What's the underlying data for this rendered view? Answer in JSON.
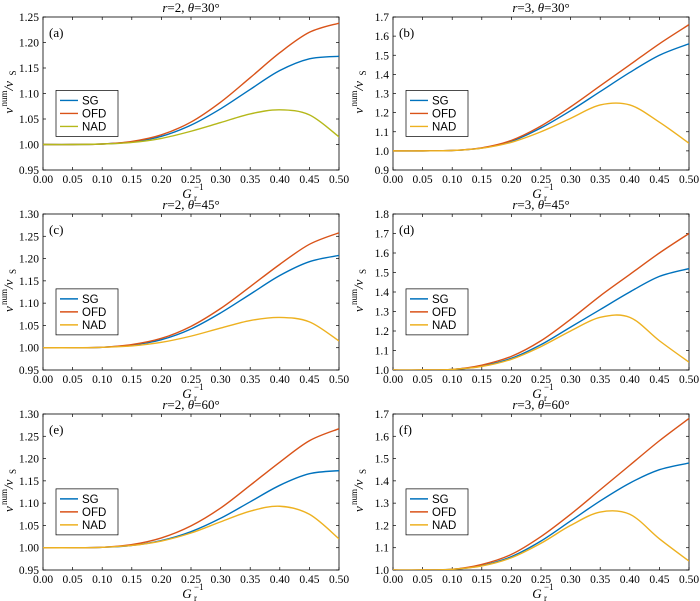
{
  "colors": {
    "SG": "#0072BD",
    "OFD": "#D95319",
    "NAD": "#EDB120",
    "NAD_a": "#B5B81A"
  },
  "chart_data": [
    {
      "type": "line",
      "label": "(a)",
      "title_r": "2",
      "title_theta": "30°",
      "xlim": [
        0,
        0.5
      ],
      "ylim": [
        0.95,
        1.25
      ],
      "xticks": [
        "0.00",
        "0.05",
        "0.10",
        "0.15",
        "0.20",
        "0.25",
        "0.30",
        "0.35",
        "0.40",
        "0.45",
        "0.50"
      ],
      "yticks": [
        "0.95",
        "1.00",
        "1.05",
        "1.10",
        "1.15",
        "1.20",
        "1.25"
      ],
      "xlabel": "G",
      "xlabel_sub": "r",
      "xlabel_sup": "−1",
      "ylabel": "v",
      "ylabel_sup": "num",
      "ylabel_tail": "/v",
      "ylabel_tail_sub": "S",
      "legend_pos": "left",
      "x": [
        0,
        0.05,
        0.1,
        0.15,
        0.2,
        0.25,
        0.3,
        0.35,
        0.4,
        0.45,
        0.5
      ],
      "series": [
        {
          "name": "SG",
          "values": [
            1.0,
            1.0,
            1.001,
            1.005,
            1.016,
            1.038,
            1.07,
            1.108,
            1.145,
            1.168,
            1.173
          ]
        },
        {
          "name": "OFD",
          "values": [
            1.0,
            1.0,
            1.001,
            1.006,
            1.019,
            1.044,
            1.083,
            1.131,
            1.18,
            1.22,
            1.238
          ]
        },
        {
          "name": "NAD",
          "values": [
            1.0,
            1.0,
            1.001,
            1.004,
            1.012,
            1.026,
            1.043,
            1.06,
            1.068,
            1.058,
            1.015
          ]
        }
      ]
    },
    {
      "type": "line",
      "label": "(b)",
      "title_r": "3",
      "title_theta": "30°",
      "xlim": [
        0,
        0.5
      ],
      "ylim": [
        0.9,
        1.7
      ],
      "xticks": [
        "0.00",
        "0.05",
        "0.10",
        "0.15",
        "0.20",
        "0.25",
        "0.30",
        "0.35",
        "0.40",
        "0.45",
        "0.50"
      ],
      "yticks": [
        "0.9",
        "1.0",
        "1.1",
        "1.2",
        "1.3",
        "1.4",
        "1.5",
        "1.6",
        "1.7"
      ],
      "xlabel": "G",
      "xlabel_sub": "r",
      "xlabel_sup": "−1",
      "ylabel": "v",
      "ylabel_sup": "num",
      "ylabel_tail": "/v",
      "ylabel_tail_sub": "S",
      "legend_pos": "left",
      "x": [
        0,
        0.05,
        0.1,
        0.15,
        0.2,
        0.25,
        0.3,
        0.35,
        0.4,
        0.45,
        0.5
      ],
      "series": [
        {
          "name": "SG",
          "values": [
            1.0,
            1.0,
            1.002,
            1.015,
            1.05,
            1.12,
            1.21,
            1.31,
            1.41,
            1.5,
            1.56
          ]
        },
        {
          "name": "OFD",
          "values": [
            1.0,
            1.0,
            1.002,
            1.016,
            1.055,
            1.13,
            1.23,
            1.34,
            1.45,
            1.56,
            1.66
          ]
        },
        {
          "name": "NAD",
          "values": [
            1.0,
            1.0,
            1.002,
            1.014,
            1.045,
            1.1,
            1.17,
            1.24,
            1.24,
            1.15,
            1.04
          ]
        }
      ]
    },
    {
      "type": "line",
      "label": "(c)",
      "title_r": "2",
      "title_theta": "45°",
      "xlim": [
        0,
        0.5
      ],
      "ylim": [
        0.95,
        1.3
      ],
      "xticks": [
        "0.00",
        "0.05",
        "0.10",
        "0.15",
        "0.20",
        "0.25",
        "0.30",
        "0.35",
        "0.40",
        "0.45",
        "0.50"
      ],
      "yticks": [
        "0.95",
        "1.00",
        "1.05",
        "1.10",
        "1.15",
        "1.20",
        "1.25",
        "1.30"
      ],
      "xlabel": "G",
      "xlabel_sub": "r",
      "xlabel_sup": "−1",
      "ylabel": "v",
      "ylabel_sup": "num",
      "ylabel_tail": "/v",
      "ylabel_tail_sub": "S",
      "legend_pos": "left",
      "x": [
        0,
        0.05,
        0.1,
        0.15,
        0.2,
        0.25,
        0.3,
        0.35,
        0.4,
        0.45,
        0.5
      ],
      "series": [
        {
          "name": "SG",
          "values": [
            1.0,
            1.0,
            1.001,
            1.006,
            1.018,
            1.042,
            1.078,
            1.12,
            1.162,
            1.193,
            1.207
          ]
        },
        {
          "name": "OFD",
          "values": [
            1.0,
            1.0,
            1.001,
            1.007,
            1.021,
            1.048,
            1.088,
            1.137,
            1.187,
            1.232,
            1.258
          ]
        },
        {
          "name": "NAD",
          "values": [
            1.0,
            1.0,
            1.001,
            1.004,
            1.012,
            1.026,
            1.044,
            1.061,
            1.068,
            1.058,
            1.015
          ]
        }
      ]
    },
    {
      "type": "line",
      "label": "(d)",
      "title_r": "3",
      "title_theta": "45°",
      "xlim": [
        0,
        0.5
      ],
      "ylim": [
        1.0,
        1.8
      ],
      "xticks": [
        "0.00",
        "0.05",
        "0.10",
        "0.15",
        "0.20",
        "0.25",
        "0.30",
        "0.35",
        "0.40",
        "0.45",
        "0.50"
      ],
      "yticks": [
        "1.0",
        "1.1",
        "1.2",
        "1.3",
        "1.4",
        "1.5",
        "1.6",
        "1.7",
        "1.8"
      ],
      "xlabel": "G",
      "xlabel_sub": "r",
      "xlabel_sup": "−1",
      "ylabel": "v",
      "ylabel_sup": "num",
      "ylabel_tail": "/v",
      "ylabel_tail_sub": "S",
      "legend_pos": "left",
      "x": [
        0,
        0.05,
        0.1,
        0.15,
        0.2,
        0.25,
        0.3,
        0.35,
        0.4,
        0.45,
        0.5
      ],
      "series": [
        {
          "name": "SG",
          "values": [
            1.0,
            1.0,
            1.003,
            1.02,
            1.06,
            1.13,
            1.22,
            1.31,
            1.4,
            1.48,
            1.52
          ]
        },
        {
          "name": "OFD",
          "values": [
            1.0,
            1.0,
            1.003,
            1.025,
            1.07,
            1.15,
            1.26,
            1.38,
            1.49,
            1.6,
            1.7
          ]
        },
        {
          "name": "NAD",
          "values": [
            1.0,
            1.0,
            1.003,
            1.018,
            1.055,
            1.12,
            1.2,
            1.27,
            1.27,
            1.15,
            1.04
          ]
        }
      ]
    },
    {
      "type": "line",
      "label": "(e)",
      "title_r": "2",
      "title_theta": "60°",
      "xlim": [
        0,
        0.5
      ],
      "ylim": [
        0.95,
        1.3
      ],
      "xticks": [
        "0.00",
        "0.05",
        "0.10",
        "0.15",
        "0.20",
        "0.25",
        "0.30",
        "0.35",
        "0.40",
        "0.45",
        "0.50"
      ],
      "yticks": [
        "0.95",
        "1.00",
        "1.05",
        "1.10",
        "1.15",
        "1.20",
        "1.25",
        "1.30"
      ],
      "xlabel": "G",
      "xlabel_sub": "r",
      "xlabel_sup": "−1",
      "ylabel": "v",
      "ylabel_sup": "num",
      "ylabel_tail": "/v",
      "ylabel_tail_sub": "S",
      "legend_pos": "left",
      "x": [
        0,
        0.05,
        0.1,
        0.15,
        0.2,
        0.25,
        0.3,
        0.35,
        0.4,
        0.45,
        0.5
      ],
      "series": [
        {
          "name": "SG",
          "values": [
            1.0,
            1.0,
            1.001,
            1.005,
            1.016,
            1.036,
            1.066,
            1.103,
            1.14,
            1.166,
            1.173
          ]
        },
        {
          "name": "OFD",
          "values": [
            1.0,
            1.0,
            1.001,
            1.007,
            1.022,
            1.049,
            1.089,
            1.14,
            1.192,
            1.24,
            1.267
          ]
        },
        {
          "name": "NAD",
          "values": [
            1.0,
            1.0,
            1.001,
            1.005,
            1.015,
            1.033,
            1.058,
            1.082,
            1.093,
            1.075,
            1.02
          ]
        }
      ]
    },
    {
      "type": "line",
      "label": "(f)",
      "title_r": "3",
      "title_theta": "60°",
      "xlim": [
        0,
        0.5
      ],
      "ylim": [
        1.0,
        1.7
      ],
      "xticks": [
        "0.00",
        "0.05",
        "0.10",
        "0.15",
        "0.20",
        "0.25",
        "0.30",
        "0.35",
        "0.40",
        "0.45",
        "0.50"
      ],
      "yticks": [
        "1.0",
        "1.1",
        "1.2",
        "1.3",
        "1.4",
        "1.5",
        "1.6",
        "1.7"
      ],
      "xlabel": "G",
      "xlabel_sub": "r",
      "xlabel_sup": "−1",
      "ylabel": "v",
      "ylabel_sup": "num",
      "ylabel_tail": "/v",
      "ylabel_tail_sub": "S",
      "legend_pos": "left",
      "x": [
        0,
        0.05,
        0.1,
        0.15,
        0.2,
        0.25,
        0.3,
        0.35,
        0.4,
        0.45,
        0.5
      ],
      "series": [
        {
          "name": "SG",
          "values": [
            1.0,
            1.0,
            1.003,
            1.02,
            1.06,
            1.13,
            1.22,
            1.31,
            1.39,
            1.45,
            1.48
          ]
        },
        {
          "name": "OFD",
          "values": [
            1.0,
            1.0,
            1.003,
            1.025,
            1.07,
            1.15,
            1.25,
            1.36,
            1.47,
            1.58,
            1.68
          ]
        },
        {
          "name": "NAD",
          "values": [
            1.0,
            1.0,
            1.003,
            1.018,
            1.055,
            1.12,
            1.2,
            1.26,
            1.25,
            1.14,
            1.04
          ]
        }
      ]
    }
  ]
}
